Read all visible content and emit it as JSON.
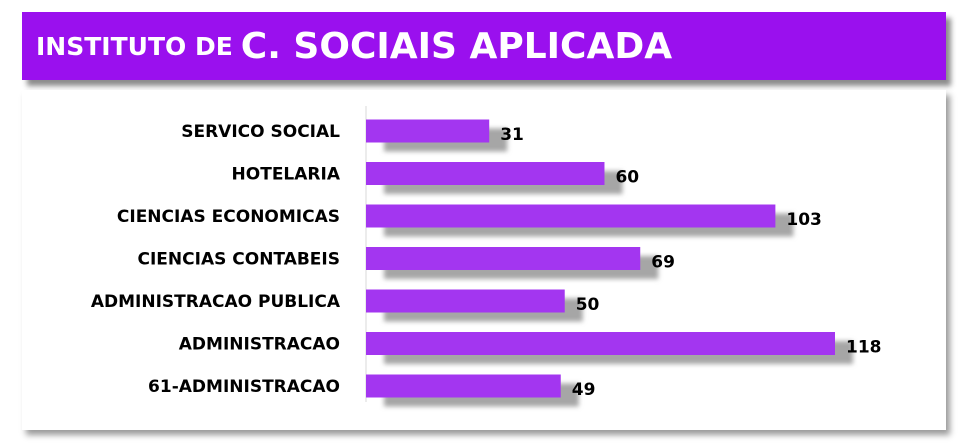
{
  "header": {
    "title_small": "INSTITUTO DE",
    "title_large": "C. SOCIAIS APLICADA"
  },
  "colors": {
    "header_bg": "#9a10ee",
    "bar": "#a336f0",
    "bar_shadow": "#a6a6a6"
  },
  "chart_data": {
    "type": "bar",
    "orientation": "horizontal",
    "categories": [
      "SERVICO SOCIAL",
      "HOTELARIA",
      "CIENCIAS ECONOMICAS",
      "CIENCIAS CONTABEIS",
      "ADMINISTRACAO PUBLICA",
      "ADMINISTRACAO",
      "61-ADMINISTRACAO"
    ],
    "values": [
      31,
      60,
      103,
      69,
      50,
      118,
      49
    ],
    "data_labels": [
      "31",
      "60",
      "103",
      "69",
      "50",
      "118",
      "49"
    ],
    "title": "",
    "xlabel": "",
    "ylabel": "",
    "xlim": [
      0,
      118
    ],
    "grid": false,
    "legend": "none"
  }
}
